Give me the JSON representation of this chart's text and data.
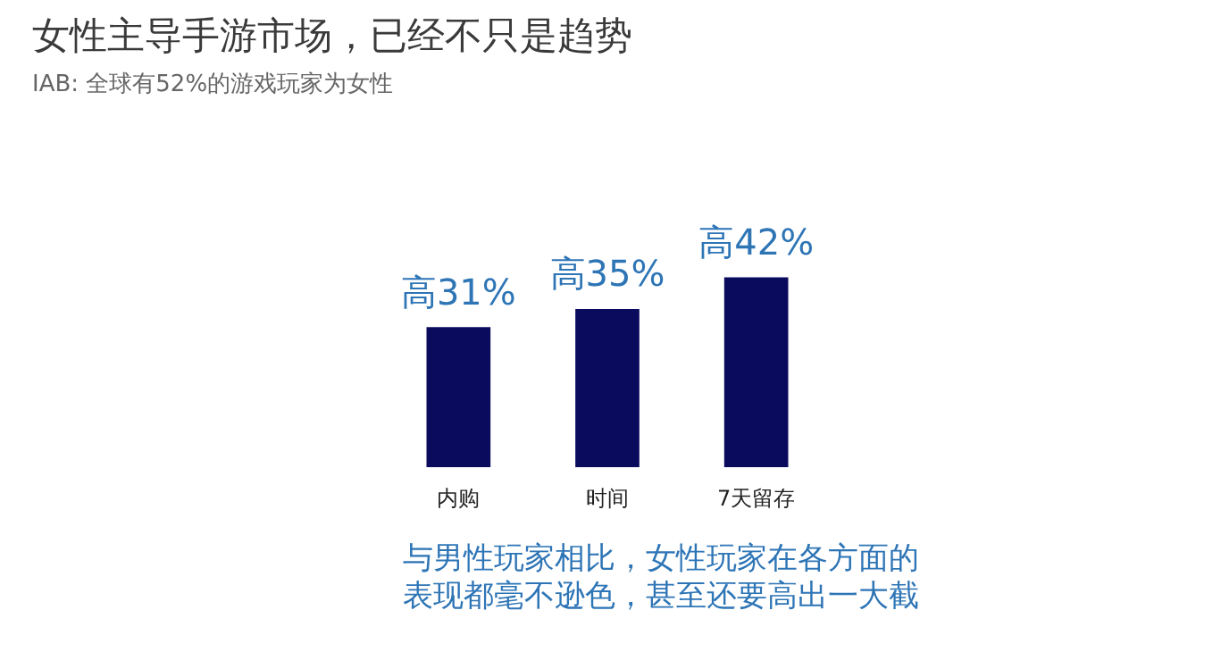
{
  "chart_data": {
    "type": "bar",
    "title": "女性主导手游市场，已经不只是趋势",
    "subtitle": "IAB: 全球有52%的游戏玩家为女性",
    "categories": [
      "内购",
      "时间",
      "7天留存"
    ],
    "values": [
      31,
      35,
      42
    ],
    "value_labels": [
      "高31%",
      "高35%",
      "高42%"
    ],
    "color": "#0b0b5e",
    "annotations": [
      "与男性玩家相比，女性玩家在各方面的表现都毫不逊色，甚至还要高出一大截"
    ]
  }
}
